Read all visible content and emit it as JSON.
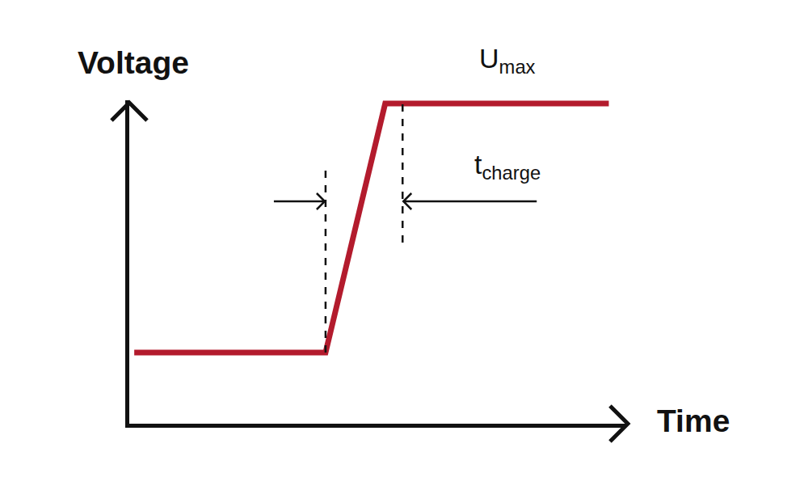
{
  "chart_data": {
    "type": "line",
    "x_label": "Time",
    "y_label": "Voltage",
    "x": [
      1,
      39.5,
      51.5,
      96.5
    ],
    "values": [
      22,
      22,
      99,
      99
    ],
    "color": "#b31b2d",
    "xlim": [
      0,
      100
    ],
    "ylim": [
      0,
      100
    ],
    "xticks": [],
    "yticks": [],
    "grid": false,
    "tick_labels": false,
    "line_style": "solid",
    "annotations": [
      {
        "text": "U",
        "subscript": "max"
      },
      {
        "text": "t",
        "subscript": "charge"
      }
    ],
    "charge_interval": [
      39.5,
      55
    ]
  }
}
